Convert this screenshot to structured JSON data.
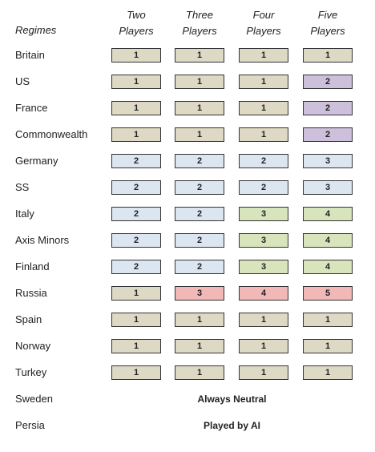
{
  "header": {
    "corner": "Regimes",
    "columns": [
      {
        "line1": "Two",
        "line2": "Players"
      },
      {
        "line1": "Three",
        "line2": "Players"
      },
      {
        "line1": "Four",
        "line2": "Players"
      },
      {
        "line1": "Five",
        "line2": "Players"
      }
    ]
  },
  "rows": [
    {
      "name": "Britain",
      "values": [
        "1",
        "1",
        "1",
        "1"
      ],
      "colors": [
        "tan",
        "tan",
        "tan",
        "tan"
      ]
    },
    {
      "name": "US",
      "values": [
        "1",
        "1",
        "1",
        "2"
      ],
      "colors": [
        "tan",
        "tan",
        "tan",
        "purple"
      ]
    },
    {
      "name": "France",
      "values": [
        "1",
        "1",
        "1",
        "2"
      ],
      "colors": [
        "tan",
        "tan",
        "tan",
        "purple"
      ]
    },
    {
      "name": "Commonwealth",
      "values": [
        "1",
        "1",
        "1",
        "2"
      ],
      "colors": [
        "tan",
        "tan",
        "tan",
        "purple"
      ]
    },
    {
      "name": "Germany",
      "values": [
        "2",
        "2",
        "2",
        "3"
      ],
      "colors": [
        "blue",
        "blue",
        "blue",
        "blue"
      ]
    },
    {
      "name": "SS",
      "values": [
        "2",
        "2",
        "2",
        "3"
      ],
      "colors": [
        "blue",
        "blue",
        "blue",
        "blue"
      ]
    },
    {
      "name": "Italy",
      "values": [
        "2",
        "2",
        "3",
        "4"
      ],
      "colors": [
        "blue",
        "blue",
        "green",
        "green"
      ]
    },
    {
      "name": "Axis Minors",
      "values": [
        "2",
        "2",
        "3",
        "4"
      ],
      "colors": [
        "blue",
        "blue",
        "green",
        "green"
      ]
    },
    {
      "name": "Finland",
      "values": [
        "2",
        "2",
        "3",
        "4"
      ],
      "colors": [
        "blue",
        "blue",
        "green",
        "green"
      ]
    },
    {
      "name": "Russia",
      "values": [
        "1",
        "3",
        "4",
        "5"
      ],
      "colors": [
        "tan",
        "pink",
        "pink",
        "pink"
      ]
    },
    {
      "name": "Spain",
      "values": [
        "1",
        "1",
        "1",
        "1"
      ],
      "colors": [
        "tan",
        "tan",
        "tan",
        "tan"
      ]
    },
    {
      "name": "Norway",
      "values": [
        "1",
        "1",
        "1",
        "1"
      ],
      "colors": [
        "tan",
        "tan",
        "tan",
        "tan"
      ]
    },
    {
      "name": "Turkey",
      "values": [
        "1",
        "1",
        "1",
        "1"
      ],
      "colors": [
        "tan",
        "tan",
        "tan",
        "tan"
      ]
    }
  ],
  "notes": [
    {
      "name": "Sweden",
      "text": "Always Neutral"
    },
    {
      "name": "Persia",
      "text": "Played by AI"
    }
  ]
}
